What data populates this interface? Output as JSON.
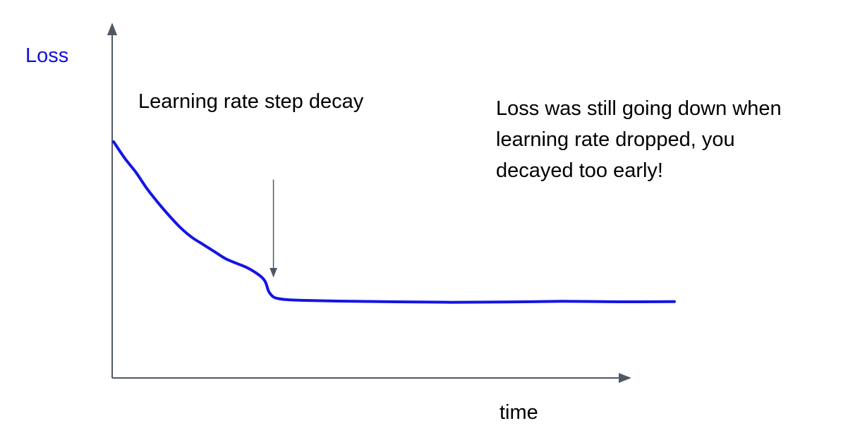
{
  "chart_data": {
    "type": "line",
    "xlabel": "time",
    "ylabel": "Loss",
    "xlim": [
      0,
      100
    ],
    "ylim": [
      0,
      100
    ],
    "grid": false,
    "legend": "none",
    "series": [
      {
        "color": "#1414e6",
        "x": [
          0,
          2,
          4,
          6,
          8,
          10,
          12,
          14,
          16,
          18,
          20,
          22,
          24,
          26,
          27,
          27.6,
          28,
          28.6,
          29.5,
          31,
          34,
          40,
          50,
          60,
          70,
          80,
          90,
          100
        ],
        "y": [
          100,
          93,
          87,
          80,
          74,
          68.5,
          63.5,
          59.5,
          56.5,
          53.5,
          50.5,
          48.5,
          46.5,
          43.5,
          41,
          37,
          35.5,
          34.2,
          33.6,
          33.2,
          32.9,
          32.6,
          32.3,
          32.1,
          32.2,
          32.5,
          32.3,
          32.4
        ]
      }
    ],
    "annotations": [
      {
        "text": "Learning rate step decay",
        "arrow_x": 28.5,
        "arrow_y_top": 84,
        "arrow_y_bottom": 43
      },
      {
        "lines": [
          "Loss was still going down when",
          "learning rate dropped, you",
          "decayed too early!"
        ]
      }
    ],
    "colors": {
      "axis": "#4f5966",
      "line": "#1414e6",
      "ylabel": "#1010e0"
    }
  }
}
